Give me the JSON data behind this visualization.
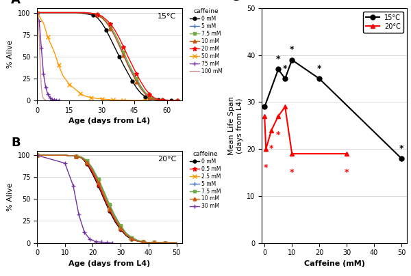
{
  "panel_A_curves": {
    "0 mM": {
      "color": "#000000",
      "marker": "o",
      "x": [
        0,
        18,
        22,
        26,
        28,
        30,
        32,
        34,
        36,
        38,
        40,
        42,
        44,
        46,
        48,
        50,
        52,
        54,
        56,
        58,
        60,
        62,
        65
      ],
      "y": [
        100,
        100,
        99,
        97,
        94,
        88,
        80,
        70,
        60,
        50,
        40,
        31,
        22,
        14,
        8,
        4,
        2,
        1,
        0.5,
        0.2,
        0.1,
        0,
        0
      ]
    },
    "5 mM": {
      "color": "#4472C4",
      "marker": "+",
      "x": [
        0,
        22,
        26,
        28,
        30,
        32,
        34,
        36,
        38,
        40,
        42,
        44,
        46,
        48,
        50,
        52,
        54,
        56,
        58,
        60,
        62,
        65
      ],
      "y": [
        100,
        100,
        99,
        97,
        94,
        89,
        82,
        73,
        63,
        52,
        41,
        32,
        23,
        15,
        8,
        4,
        2,
        1,
        0.5,
        0.2,
        0,
        0
      ]
    },
    "7.5 mM": {
      "color": "#70AD47",
      "marker": "s",
      "x": [
        0,
        22,
        26,
        28,
        30,
        32,
        34,
        36,
        38,
        40,
        42,
        44,
        46,
        48,
        50,
        52,
        54,
        56,
        58,
        60,
        62,
        65
      ],
      "y": [
        100,
        100,
        99,
        98,
        95,
        90,
        84,
        76,
        66,
        55,
        44,
        34,
        25,
        16,
        9,
        5,
        2,
        1,
        0.5,
        0.2,
        0,
        0
      ]
    },
    "10 mM": {
      "color": "#C55A11",
      "marker": "^",
      "x": [
        0,
        22,
        26,
        28,
        30,
        32,
        34,
        36,
        38,
        40,
        42,
        44,
        46,
        48,
        50,
        52,
        54,
        56,
        58,
        60,
        62,
        65
      ],
      "y": [
        100,
        100,
        99,
        97,
        94,
        89,
        82,
        73,
        62,
        51,
        40,
        30,
        21,
        13,
        7,
        3,
        1,
        0.5,
        0.2,
        0,
        0,
        0
      ]
    },
    "20 mM": {
      "color": "#FF0000",
      "marker": "*",
      "x": [
        0,
        22,
        26,
        28,
        30,
        32,
        34,
        36,
        38,
        40,
        42,
        44,
        46,
        48,
        50,
        52,
        54,
        56,
        58,
        60,
        62,
        65
      ],
      "y": [
        100,
        100,
        99,
        98,
        96,
        92,
        87,
        80,
        71,
        61,
        50,
        40,
        30,
        21,
        13,
        7,
        3,
        1,
        0.5,
        0,
        0,
        0
      ]
    },
    "50 mM": {
      "color": "#FF9900",
      "marker": "x",
      "x": [
        0,
        3,
        5,
        8,
        10,
        12,
        15,
        18,
        20,
        22,
        25,
        28,
        30,
        32,
        35,
        38,
        40,
        45,
        50
      ],
      "y": [
        100,
        88,
        72,
        55,
        40,
        28,
        18,
        12,
        8,
        5,
        3,
        2,
        1.5,
        1,
        0.5,
        0.2,
        0.1,
        0,
        0
      ]
    },
    "75 mM": {
      "color": "#7030A0",
      "marker": "+",
      "x": [
        0,
        1,
        2,
        3,
        4,
        5,
        6,
        7,
        8,
        9,
        10
      ],
      "y": [
        100,
        90,
        60,
        30,
        15,
        7,
        3,
        1,
        0.5,
        0.2,
        0
      ]
    },
    "100 mM": {
      "color": "#D99694",
      "marker": "",
      "x": [
        0,
        0.5,
        1,
        1.5,
        2,
        2.5,
        3,
        3.5,
        4
      ],
      "y": [
        100,
        95,
        75,
        40,
        15,
        5,
        2,
        1,
        0
      ]
    }
  },
  "panel_B_curves": {
    "0 mM": {
      "color": "#000000",
      "marker": "o",
      "x": [
        0,
        10,
        14,
        16,
        18,
        20,
        22,
        24,
        26,
        28,
        30,
        32,
        34,
        36,
        38,
        40,
        42,
        44,
        46,
        50
      ],
      "y": [
        100,
        100,
        99,
        97,
        90,
        78,
        65,
        50,
        36,
        24,
        15,
        8,
        4,
        2,
        1,
        0.5,
        0.2,
        0.1,
        0,
        0
      ]
    },
    "0.5 mM": {
      "color": "#FF0000",
      "marker": "*",
      "x": [
        0,
        10,
        14,
        16,
        18,
        20,
        22,
        24,
        26,
        28,
        30,
        32,
        34,
        36,
        38,
        40,
        42,
        44,
        46,
        50
      ],
      "y": [
        100,
        100,
        99,
        97,
        91,
        80,
        67,
        52,
        38,
        26,
        16,
        9,
        5,
        2,
        1,
        0.5,
        0.2,
        0.1,
        0,
        0
      ]
    },
    "2.5 mM": {
      "color": "#FF9900",
      "marker": "x",
      "x": [
        0,
        10,
        14,
        16,
        18,
        20,
        22,
        24,
        26,
        28,
        30,
        32,
        34,
        36,
        38,
        40,
        42,
        44,
        46,
        50
      ],
      "y": [
        100,
        100,
        99,
        98,
        93,
        83,
        70,
        56,
        41,
        28,
        18,
        10,
        5,
        3,
        1,
        0.5,
        0.2,
        0.1,
        0,
        0
      ]
    },
    "5 mM": {
      "color": "#4472C4",
      "marker": "+",
      "x": [
        0,
        10,
        14,
        16,
        18,
        20,
        22,
        24,
        26,
        28,
        30,
        32,
        34,
        36,
        38,
        40,
        42,
        44,
        46,
        50
      ],
      "y": [
        100,
        100,
        99,
        98,
        93,
        84,
        72,
        58,
        43,
        30,
        19,
        11,
        6,
        3,
        1,
        0.5,
        0.2,
        0.1,
        0,
        0
      ]
    },
    "7.5 mM": {
      "color": "#70AD47",
      "marker": "s",
      "x": [
        0,
        10,
        14,
        16,
        18,
        20,
        22,
        24,
        26,
        28,
        30,
        32,
        34,
        36,
        38,
        40,
        42,
        44,
        46,
        50
      ],
      "y": [
        100,
        100,
        99,
        98,
        94,
        85,
        73,
        59,
        44,
        31,
        20,
        11,
        6,
        3,
        1,
        0.5,
        0.2,
        0.1,
        0,
        0
      ]
    },
    "10 mM": {
      "color": "#C55A11",
      "marker": "^",
      "x": [
        0,
        10,
        14,
        16,
        18,
        20,
        22,
        24,
        26,
        28,
        30,
        32,
        34,
        36,
        38,
        40,
        42,
        44,
        46,
        50
      ],
      "y": [
        100,
        100,
        99,
        97,
        92,
        82,
        69,
        54,
        39,
        27,
        17,
        9,
        5,
        2,
        1,
        0.5,
        0.2,
        0.1,
        0,
        0
      ]
    },
    "30 mM": {
      "color": "#7030A0",
      "marker": "+",
      "x": [
        0,
        10,
        13,
        15,
        17,
        19,
        21,
        23,
        25,
        27
      ],
      "y": [
        100,
        91,
        65,
        32,
        12,
        4,
        1.5,
        0.8,
        0.3,
        0
      ]
    }
  },
  "panel_C_15C": {
    "x": [
      0,
      5,
      7.5,
      10,
      20,
      50
    ],
    "y": [
      29,
      37,
      35,
      39,
      35,
      18
    ],
    "sig": [
      false,
      true,
      true,
      true,
      true,
      true
    ],
    "color": "#000000",
    "marker": "o",
    "label": "15°C"
  },
  "panel_C_20C": {
    "x": [
      0,
      0.5,
      2.5,
      5,
      7.5,
      10,
      30
    ],
    "y": [
      27,
      20,
      24,
      27,
      29,
      19,
      19
    ],
    "sig": [
      false,
      true,
      true,
      true,
      false,
      true,
      true
    ],
    "color": "#FF0000",
    "marker": "^",
    "label": "20°C"
  },
  "panel_C_ylim": [
    0,
    50
  ],
  "panel_C_xlim": [
    -1,
    52
  ],
  "panel_C_yticks": [
    0,
    10,
    20,
    30,
    40,
    50
  ],
  "panel_C_xticks": [
    0,
    10,
    20,
    30,
    40,
    50
  ],
  "marker_styles_A": {
    "0 mM": [
      "o",
      3.5
    ],
    "5 mM": [
      "+",
      4
    ],
    "7.5 mM": [
      "s",
      3
    ],
    "10 mM": [
      "^",
      3.5
    ],
    "20 mM": [
      "*",
      5
    ],
    "50 mM": [
      "x",
      4
    ],
    "75 mM": [
      "+",
      4
    ],
    "100 mM": [
      "",
      3
    ]
  },
  "marker_styles_B": {
    "0 mM": [
      "o",
      3.5
    ],
    "0.5 mM": [
      "*",
      5
    ],
    "2.5 mM": [
      "x",
      4
    ],
    "5 mM": [
      "+",
      4
    ],
    "7.5 mM": [
      "s",
      3
    ],
    "10 mM": [
      "^",
      3.5
    ],
    "30 mM": [
      "+",
      4
    ]
  }
}
